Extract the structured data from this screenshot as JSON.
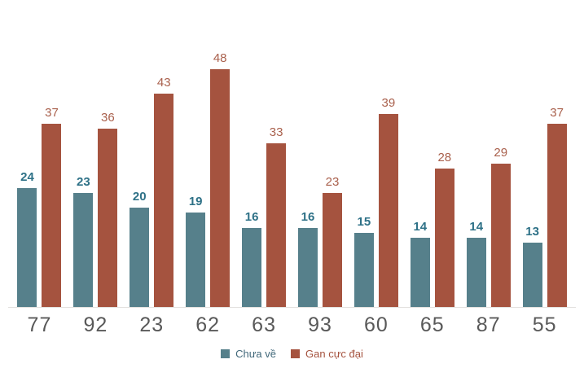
{
  "chart_data": {
    "type": "bar",
    "title": "",
    "xlabel": "",
    "ylabel": "",
    "categories": [
      "77",
      "92",
      "23",
      "62",
      "63",
      "93",
      "60",
      "65",
      "87",
      "55"
    ],
    "series": [
      {
        "name": "Chưa về",
        "slug": "chua-ve",
        "color": "#56808B",
        "label_color": "#2E7187",
        "label_bold": true,
        "values": [
          24,
          23,
          20,
          19,
          16,
          16,
          15,
          14,
          14,
          13
        ]
      },
      {
        "name": "Gan cực đại",
        "slug": "gan-cuc-dai",
        "color": "#A5533F",
        "label_color": "#A9604C",
        "label_bold": false,
        "values": [
          37,
          36,
          43,
          48,
          33,
          23,
          39,
          28,
          29,
          37
        ]
      }
    ],
    "value_labels": true,
    "gridlines": false,
    "y_axis_visible": false,
    "x_axis_line": true,
    "legend_position": "bottom",
    "ylim": [
      0,
      62
    ]
  },
  "colors": {
    "background": "#ffffff",
    "axis_line": "#e3e1de",
    "category_label": "#595959",
    "legend_text_series_1": "#41687A",
    "legend_text_series_2": "#A5533F"
  }
}
